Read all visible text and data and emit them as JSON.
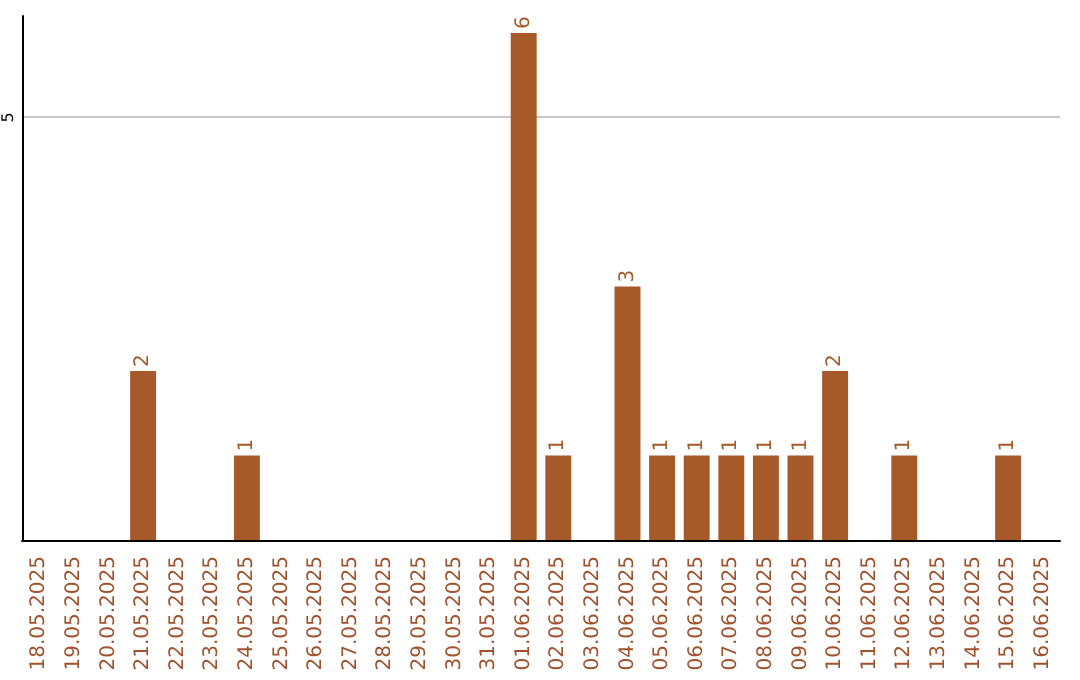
{
  "chart_data": {
    "type": "bar",
    "categories": [
      "18.05.2025",
      "19.05.2025",
      "20.05.2025",
      "21.05.2025",
      "22.05.2025",
      "23.05.2025",
      "24.05.2025",
      "25.05.2025",
      "26.05.2025",
      "27.05.2025",
      "28.05.2025",
      "29.05.2025",
      "30.05.2025",
      "31.05.2025",
      "01.06.2025",
      "02.06.2025",
      "03.06.2025",
      "04.06.2025",
      "05.06.2025",
      "06.06.2025",
      "07.06.2025",
      "08.06.2025",
      "09.06.2025",
      "10.06.2025",
      "11.06.2025",
      "12.06.2025",
      "13.06.2025",
      "14.06.2025",
      "15.06.2025",
      "16.06.2025"
    ],
    "values": [
      0,
      0,
      0,
      2,
      0,
      0,
      1,
      0,
      0,
      0,
      0,
      0,
      0,
      0,
      6,
      1,
      0,
      3,
      1,
      1,
      1,
      1,
      1,
      2,
      0,
      1,
      0,
      0,
      1,
      0
    ],
    "value_labels": [
      null,
      null,
      null,
      "2",
      null,
      null,
      "1",
      null,
      null,
      null,
      null,
      null,
      null,
      null,
      "6",
      "1",
      null,
      "3",
      "1",
      "1",
      "1",
      "1",
      "1",
      "2",
      null,
      "1",
      null,
      null,
      "1",
      null
    ],
    "color": "#a65a2a",
    "ylim": [
      0,
      6.2
    ],
    "yticks": [
      {
        "value": 0,
        "label": null
      },
      5
    ],
    "grid": "y"
  }
}
